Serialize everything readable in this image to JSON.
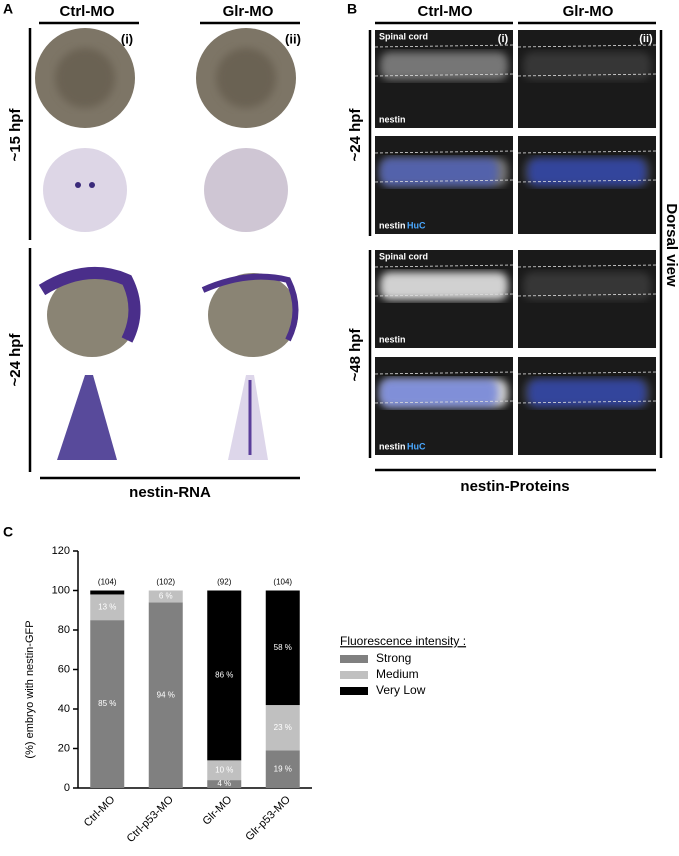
{
  "panel_a": {
    "label": "A",
    "columns": [
      "Ctrl-MO",
      "Glr-MO"
    ],
    "roman": [
      "(i)",
      "(ii)"
    ],
    "rows": [
      "~15 hpf",
      "~24 hpf"
    ],
    "caption": "nestin-RNA"
  },
  "panel_b": {
    "label": "B",
    "columns": [
      "Ctrl-MO",
      "Glr-MO"
    ],
    "roman": [
      "(i)",
      "(ii)"
    ],
    "rows": [
      "~24 hpf",
      "~48 hpf"
    ],
    "side": "Dorsal view",
    "caption": "nestin-Proteins",
    "image_labels": {
      "spinal_cord": "Spinal cord",
      "nestin": "nestin",
      "huc": "HuC"
    }
  },
  "chart_data": {
    "type": "bar",
    "stacked": true,
    "panel_label": "C",
    "y_label": "(%) embryo with nestin-GFP",
    "categories": [
      "Ctrl-MO",
      "Ctrl-p53-MO",
      "Glr-MO",
      "Glr-p53-MO"
    ],
    "n_labels": [
      "(104)",
      "(102)",
      "(92)",
      "(104)"
    ],
    "ylim": [
      0,
      120
    ],
    "yticks": [
      0,
      20,
      40,
      60,
      80,
      100,
      120
    ],
    "legend_title": "Fluorescence intensity :",
    "series": [
      {
        "name": "Strong",
        "color": "#808080",
        "values": [
          85,
          94,
          4,
          19
        ],
        "value_labels": [
          "85 %",
          "94 %",
          "4 %",
          "19 %"
        ]
      },
      {
        "name": "Medium",
        "color": "#c0c0c0",
        "values": [
          13,
          6,
          10,
          23
        ],
        "value_labels": [
          "13 %",
          "6 %",
          "10 %",
          "23 %"
        ]
      },
      {
        "name": "Very Low",
        "color": "#000000",
        "values": [
          2,
          0,
          86,
          58
        ],
        "value_labels": [
          null,
          null,
          "86 %",
          "58 %"
        ]
      }
    ]
  }
}
